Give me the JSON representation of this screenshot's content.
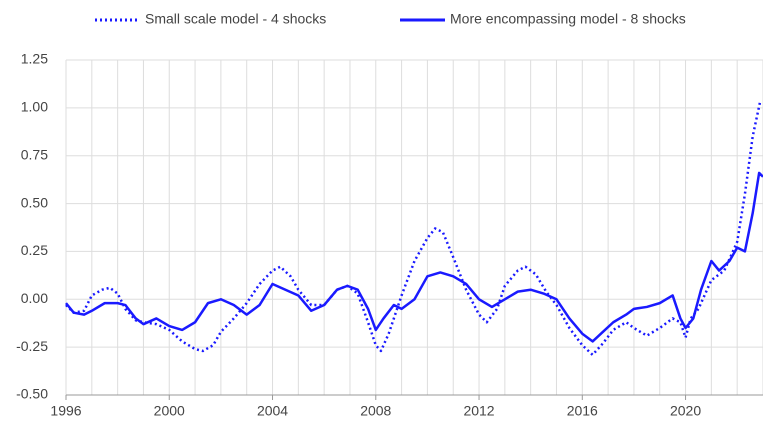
{
  "chart_data": {
    "type": "line",
    "xlim": [
      1996,
      2023
    ],
    "xticks": [
      1996,
      2000,
      2004,
      2008,
      2012,
      2016,
      2020
    ],
    "x_grid_step": 1,
    "ylim": [
      -0.5,
      1.25
    ],
    "yticks": [
      {
        "value": -0.5,
        "label": "-0.50"
      },
      {
        "value": -0.25,
        "label": "-0.25"
      },
      {
        "value": 0,
        "label": "0.00"
      },
      {
        "value": 0.25,
        "label": "0.25"
      },
      {
        "value": 0.5,
        "label": "0.50"
      },
      {
        "value": 0.75,
        "label": "0.75"
      },
      {
        "value": 1,
        "label": "1.00"
      },
      {
        "value": 1.25,
        "label": "1.25"
      }
    ],
    "grid": true,
    "legend": "top",
    "series": [
      {
        "name": "Small scale model - 4 shocks",
        "color": "#1a1aff",
        "line_style": "dotted",
        "x": [
          1996.0,
          1996.3,
          1996.7,
          1997.0,
          1997.4,
          1997.7,
          1998.0,
          1998.3,
          1998.7,
          1999.0,
          1999.5,
          2000.0,
          2000.5,
          2001.0,
          2001.3,
          2001.7,
          2002.0,
          2002.5,
          2003.0,
          2003.5,
          2004.0,
          2004.3,
          2004.7,
          2005.0,
          2005.5,
          2006.0,
          2006.5,
          2006.9,
          2007.3,
          2007.7,
          2008.0,
          2008.2,
          2008.5,
          2009.0,
          2009.5,
          2010.0,
          2010.3,
          2010.6,
          2011.0,
          2011.5,
          2012.0,
          2012.3,
          2012.7,
          2013.0,
          2013.5,
          2013.8,
          2014.2,
          2014.6,
          2015.0,
          2015.5,
          2016.0,
          2016.4,
          2016.8,
          2017.2,
          2017.7,
          2018.0,
          2018.5,
          2019.0,
          2019.5,
          2019.8,
          2020.0,
          2020.2,
          2020.5,
          2021.0,
          2021.5,
          2022.0,
          2022.3,
          2022.6,
          2022.9
        ],
        "values": [
          -0.03,
          -0.07,
          -0.06,
          0.02,
          0.05,
          0.06,
          0.03,
          -0.05,
          -0.11,
          -0.12,
          -0.13,
          -0.16,
          -0.22,
          -0.26,
          -0.27,
          -0.24,
          -0.17,
          -0.1,
          -0.02,
          0.08,
          0.15,
          0.17,
          0.12,
          0.05,
          -0.03,
          -0.03,
          0.05,
          0.07,
          0.03,
          -0.12,
          -0.24,
          -0.27,
          -0.18,
          0.02,
          0.2,
          0.32,
          0.37,
          0.35,
          0.22,
          0.05,
          -0.08,
          -0.12,
          -0.05,
          0.07,
          0.15,
          0.17,
          0.13,
          0.04,
          -0.03,
          -0.15,
          -0.24,
          -0.29,
          -0.23,
          -0.16,
          -0.12,
          -0.15,
          -0.19,
          -0.15,
          -0.1,
          -0.12,
          -0.2,
          -0.1,
          -0.05,
          0.1,
          0.15,
          0.3,
          0.55,
          0.85,
          1.04
        ]
      },
      {
        "name": "More encompassing model - 8 shocks",
        "color": "#1a1aff",
        "line_style": "solid",
        "x": [
          1996.0,
          1996.3,
          1996.7,
          1997.0,
          1997.5,
          1998.0,
          1998.3,
          1998.7,
          1999.0,
          1999.5,
          2000.0,
          2000.5,
          2001.0,
          2001.5,
          2002.0,
          2002.5,
          2003.0,
          2003.5,
          2004.0,
          2004.5,
          2005.0,
          2005.5,
          2006.0,
          2006.5,
          2006.9,
          2007.3,
          2007.7,
          2008.0,
          2008.3,
          2008.7,
          2009.0,
          2009.5,
          2010.0,
          2010.5,
          2011.0,
          2011.5,
          2012.0,
          2012.5,
          2013.0,
          2013.5,
          2014.0,
          2014.5,
          2015.0,
          2015.5,
          2016.0,
          2016.4,
          2016.8,
          2017.2,
          2017.7,
          2018.0,
          2018.5,
          2019.0,
          2019.5,
          2019.8,
          2020.0,
          2020.3,
          2020.6,
          2021.0,
          2021.3,
          2021.7,
          2022.0,
          2022.3,
          2022.6,
          2022.85,
          2023.0
        ],
        "values": [
          -0.02,
          -0.07,
          -0.08,
          -0.06,
          -0.02,
          -0.02,
          -0.03,
          -0.1,
          -0.13,
          -0.1,
          -0.14,
          -0.16,
          -0.12,
          -0.02,
          0.0,
          -0.03,
          -0.08,
          -0.03,
          0.08,
          0.05,
          0.02,
          -0.06,
          -0.03,
          0.05,
          0.07,
          0.05,
          -0.05,
          -0.16,
          -0.1,
          -0.03,
          -0.05,
          0.0,
          0.12,
          0.14,
          0.12,
          0.08,
          0.0,
          -0.04,
          0.0,
          0.04,
          0.05,
          0.03,
          0.0,
          -0.1,
          -0.18,
          -0.22,
          -0.17,
          -0.12,
          -0.08,
          -0.05,
          -0.04,
          -0.02,
          0.02,
          -0.1,
          -0.15,
          -0.1,
          0.05,
          0.2,
          0.15,
          0.2,
          0.27,
          0.25,
          0.45,
          0.66,
          0.64
        ]
      }
    ]
  }
}
